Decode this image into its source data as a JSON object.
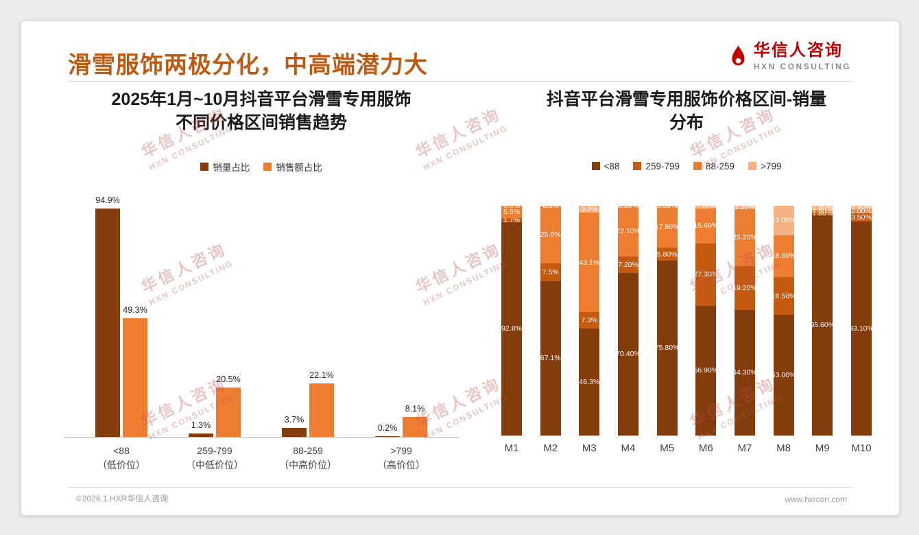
{
  "header": {
    "title": "滑雪服饰两极分化，中高端潜力大"
  },
  "logo": {
    "name": "华信人咨询",
    "sub": "HXN CONSULTING",
    "color": "#C00000"
  },
  "watermark": {
    "line1": "华信人咨询",
    "line2": "HXN CONSULTING",
    "count": 9
  },
  "footer": {
    "left": "©2026.1 HXR华信人咨询",
    "right": "www.hxrcon.com"
  },
  "colors": {
    "title_accent": "#BC5A11",
    "brown": "#843C0C",
    "orange": "#ED7D31",
    "rust": "#C55A11",
    "peach": "#F4B183"
  },
  "chart_data": [
    {
      "type": "bar",
      "stacked": false,
      "title": "2025年1月~10月抖音平台滑雪专用服饰\n不同价格区间销售趋势",
      "categories": [
        "<88\n（低价位）",
        "259-799\n（中低价位）",
        "88-259\n（中高价位）",
        ">799\n（高价位）"
      ],
      "series": [
        {
          "name": "销量占比",
          "color": "#843C0C",
          "values": [
            94.9,
            1.3,
            3.7,
            0.2
          ],
          "labels": [
            "94.9%",
            "1.3%",
            "3.7%",
            "0.2%"
          ]
        },
        {
          "name": "销售额占比",
          "color": "#ED7D31",
          "values": [
            49.3,
            20.5,
            22.1,
            8.1
          ],
          "labels": [
            "49.3%",
            "20.5%",
            "22.1%",
            "8.1%"
          ]
        }
      ],
      "ylim": [
        0,
        100
      ],
      "grid": false,
      "legend_position": "top",
      "value_suffix": "%"
    },
    {
      "type": "bar",
      "stacked": true,
      "title": "抖音平台滑雪专用服饰价格区间-销量\n分布",
      "categories": [
        "M1",
        "M2",
        "M3",
        "M4",
        "M5",
        "M6",
        "M7",
        "M8",
        "M9",
        "M10"
      ],
      "series": [
        {
          "name": "<88",
          "color": "#843C0C",
          "values": [
            92.8,
            67.1,
            46.3,
            70.4,
            75.8,
            56.9,
            54.3,
            53.0,
            95.6,
            93.1
          ],
          "labels": [
            "92.8%",
            "67.1%",
            "46.3%",
            "70.40%",
            "75.80%",
            "56.90%",
            "54.30%",
            "53.00%",
            "95.60%",
            "93.10%"
          ]
        },
        {
          "name": "259-799",
          "color": "#C55A11",
          "values": [
            1.7,
            7.5,
            7.3,
            7.2,
            5.8,
            27.3,
            19.2,
            16.5,
            1.8,
            3.5
          ],
          "labels": [
            "1.7%",
            "7.5%",
            "7.3%",
            "7.20%",
            "5.80%",
            "27.30%",
            "19.20%",
            "16.50%",
            "1.80%",
            "3.50%"
          ]
        },
        {
          "name": "88-259",
          "color": "#ED7D31",
          "values": [
            5.5,
            25.0,
            43.1,
            22.1,
            17.8,
            15.6,
            25.2,
            18.6,
            0.8,
            2.0
          ],
          "labels": [
            "5.5%",
            "25.0%",
            "43.1%",
            "22.10%",
            "17.80%",
            "15.60%",
            "25.20%",
            "18.60%",
            "0.80%",
            "2.00%"
          ]
        },
        {
          "name": ">799",
          "color": "#F4B183",
          "values": [
            0.0,
            0.3,
            3.2,
            0.2,
            0.5,
            1.1,
            1.2,
            13.0,
            1.8,
            1.4
          ],
          "labels": [
            "0.0%",
            "0.3%",
            "3.2%",
            "0.20%",
            "0.50%",
            "1.10%",
            "1.20%",
            "13.00%",
            "1.80%",
            "1.40%"
          ]
        }
      ],
      "ylim": [
        0,
        100
      ],
      "grid": false,
      "legend_position": "top",
      "value_suffix": "%"
    }
  ]
}
